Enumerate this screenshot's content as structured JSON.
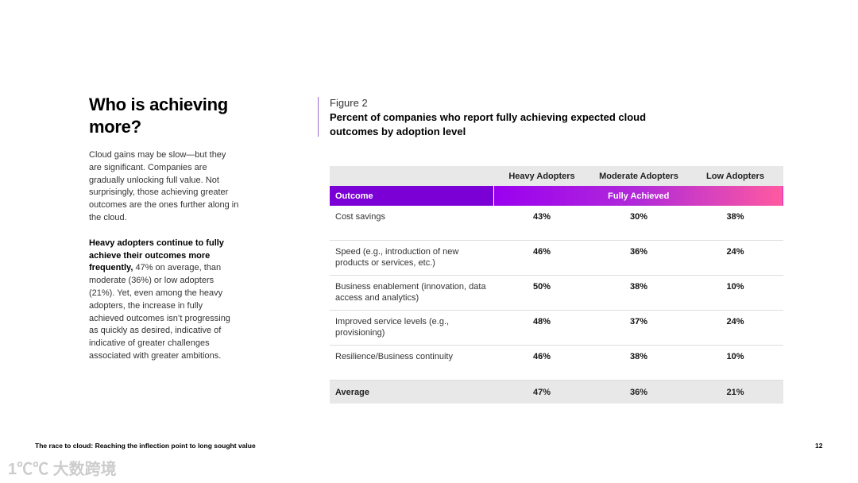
{
  "title": "Who is achieving more?",
  "para1": "Cloud gains may be slow—but they are significant. Companies are gradually unlocking full value. Not surprisingly, those achieving greater outcomes are the ones further along in the cloud.",
  "para2_bold": "Heavy adopters continue to fully achieve their outcomes more frequently,",
  "para2_rest": " 47% on average, than moderate (36%) or low adopters (21%). Yet, even among the heavy adopters, the increase in fully achieved outcomes isn’t progressing as quickly as desired, indicative of indicative of greater challenges associated with greater ambitions.",
  "figure": {
    "label": "Figure 2",
    "caption": "Percent of companies who report fully achieving expected cloud outcomes by adoption level"
  },
  "table": {
    "columns": [
      "Heavy Adopters",
      "Moderate Adopters",
      "Low Adopters"
    ],
    "outcome_label": "Outcome",
    "band_label": "Fully Achieved",
    "rows": [
      {
        "label": "Cost savings",
        "values": [
          "43%",
          "30%",
          "38%"
        ]
      },
      {
        "label": "Speed (e.g., introduction of new products or services, etc.)",
        "values": [
          "46%",
          "36%",
          "24%"
        ]
      },
      {
        "label": "Business enablement (innovation, data access and analytics)",
        "values": [
          "50%",
          "38%",
          "10%"
        ]
      },
      {
        "label": "Improved service levels (e.g., provisioning)",
        "values": [
          "48%",
          "37%",
          "24%"
        ]
      },
      {
        "label": "Resilience/Business continuity",
        "values": [
          "46%",
          "38%",
          "10%"
        ]
      }
    ],
    "average": {
      "label": "Average",
      "values": [
        "47%",
        "36%",
        "21%"
      ]
    }
  },
  "footer": "The race to cloud:  Reaching the inflection point to long sought value",
  "page_number": "12",
  "watermark": "1℃℃ 大数跨境"
}
